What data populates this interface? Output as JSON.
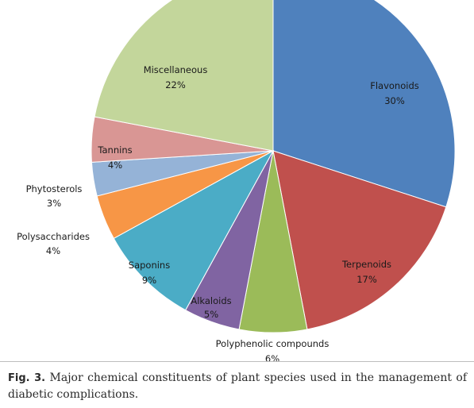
{
  "chart_data": {
    "type": "pie",
    "slices": [
      {
        "label": "Flavonoids",
        "value": 30,
        "value_label": "30%",
        "color": "#4f81bd"
      },
      {
        "label": "Terpenoids",
        "value": 17,
        "value_label": "17%",
        "color": "#c0504d"
      },
      {
        "label": "Polyphenolic compounds",
        "value": 6,
        "value_label": "6%",
        "color": "#9bbb59"
      },
      {
        "label": "Alkaloids",
        "value": 5,
        "value_label": "5%",
        "color": "#8064a2"
      },
      {
        "label": "Saponins",
        "value": 9,
        "value_label": "9%",
        "color": "#4bacc6"
      },
      {
        "label": "Polysaccharides",
        "value": 4,
        "value_label": "4%",
        "color": "#f79646"
      },
      {
        "label": "Phytosterols",
        "value": 3,
        "value_label": "3%",
        "color": "#95b3d7"
      },
      {
        "label": "Tannins",
        "value": 4,
        "value_label": "4%",
        "color": "#d99694"
      },
      {
        "label": "Miscellaneous",
        "value": 22,
        "value_label": "22%",
        "color": "#c3d69b"
      }
    ],
    "label_placement": "inside; outside for Polyphenolic compounds, Polysaccharides and Phytosterols"
  },
  "caption": {
    "prefix": "Fig. 3.",
    "text": " Major chemical constituents of plant species used in the management of diabetic complications."
  }
}
